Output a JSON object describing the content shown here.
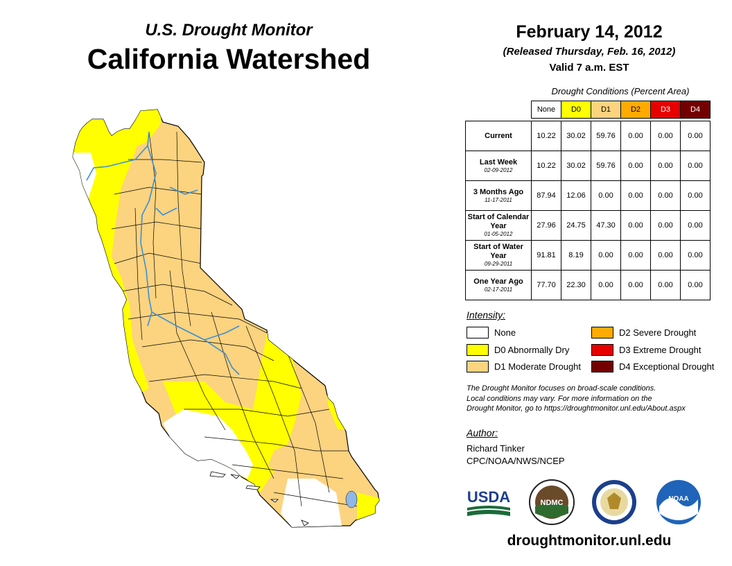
{
  "header": {
    "subtitle": "U.S. Drought Monitor",
    "title": "California Watershed",
    "date": "February 14, 2012",
    "released": "(Released Thursday, Feb. 16, 2012)",
    "valid": "Valid 7 a.m. EST"
  },
  "table": {
    "caption": "Drought Conditions (Percent Area)",
    "columns": [
      "None",
      "D0",
      "D1",
      "D2",
      "D3",
      "D4"
    ],
    "column_colors": [
      "#ffffff",
      "#ffff00",
      "#fcd37f",
      "#ffaa00",
      "#e60000",
      "#730000"
    ],
    "rows": [
      {
        "label": "Current",
        "date": "",
        "values": [
          "10.22",
          "30.02",
          "59.76",
          "0.00",
          "0.00",
          "0.00"
        ]
      },
      {
        "label": "Last Week",
        "date": "02-09-2012",
        "values": [
          "10.22",
          "30.02",
          "59.76",
          "0.00",
          "0.00",
          "0.00"
        ]
      },
      {
        "label": "3 Months Ago",
        "date": "11-17-2011",
        "values": [
          "87.94",
          "12.06",
          "0.00",
          "0.00",
          "0.00",
          "0.00"
        ]
      },
      {
        "label": "Start of Calendar Year",
        "date": "01-05-2012",
        "values": [
          "27.96",
          "24.75",
          "47.30",
          "0.00",
          "0.00",
          "0.00"
        ]
      },
      {
        "label": "Start of Water Year",
        "date": "09-29-2011",
        "values": [
          "91.81",
          "8.19",
          "0.00",
          "0.00",
          "0.00",
          "0.00"
        ]
      },
      {
        "label": "One Year Ago",
        "date": "02-17-2011",
        "values": [
          "77.70",
          "22.30",
          "0.00",
          "0.00",
          "0.00",
          "0.00"
        ]
      }
    ]
  },
  "legend": {
    "title": "Intensity:",
    "items": [
      {
        "label": "None",
        "color": "#ffffff"
      },
      {
        "label": "D0 Abnormally Dry",
        "color": "#ffff00"
      },
      {
        "label": "D1 Moderate Drought",
        "color": "#fcd37f"
      },
      {
        "label": "D2 Severe Drought",
        "color": "#ffaa00"
      },
      {
        "label": "D3 Extreme Drought",
        "color": "#e60000"
      },
      {
        "label": "D4 Exceptional Drought",
        "color": "#730000"
      }
    ]
  },
  "note": {
    "line1": "The Drought Monitor focuses on broad-scale conditions.",
    "line2": "Local conditions may vary. For more information on the",
    "line3": "Drought Monitor, go to https://droughtmonitor.unl.edu/About.aspx"
  },
  "author": {
    "title": "Author:",
    "name": "Richard Tinker",
    "org": "CPC/NOAA/NWS/NCEP"
  },
  "logos": {
    "usda": "USDA",
    "ndmc": "NDMC",
    "noaa": "NOAA"
  },
  "footer": {
    "url": "droughtmonitor.unl.edu"
  },
  "map": {
    "colors": {
      "d0": "#ffff00",
      "d1": "#fcd37f",
      "none": "#ffffff",
      "river": "#3a8fd6",
      "lake": "#8fb8e8"
    }
  }
}
